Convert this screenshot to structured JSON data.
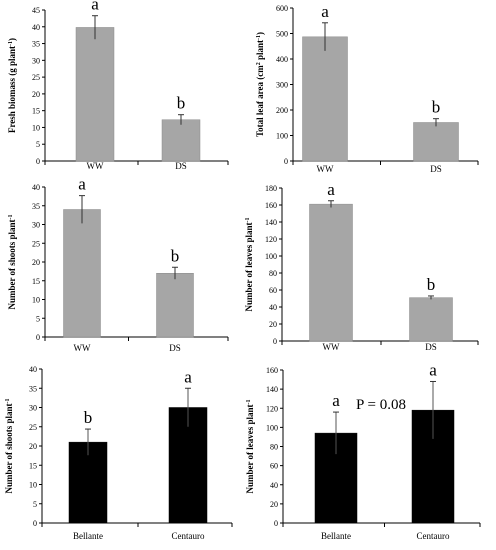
{
  "chart_data": [
    {
      "type": "bar",
      "categories": [
        "WW",
        "DS"
      ],
      "values": [
        39.8,
        12.3
      ],
      "errors": [
        3.5,
        1.5
      ],
      "significance": [
        "a",
        "b"
      ],
      "ylabel": "Fresh biomass (g plant-1)",
      "ylim": [
        0,
        45
      ],
      "yticks": [
        "0",
        "5",
        "10",
        "15",
        "20",
        "25",
        "30",
        "35",
        "40",
        "45"
      ],
      "bar_color": "#a6a6a6",
      "note": ""
    },
    {
      "type": "bar",
      "categories": [
        "WW",
        "DS"
      ],
      "values": [
        487,
        151
      ],
      "errors": [
        55,
        15
      ],
      "significance": [
        "a",
        "b"
      ],
      "ylabel": "Total leaf area (cm2 plant-1)",
      "ylim": [
        0,
        600
      ],
      "yticks": [
        "0",
        "100",
        "200",
        "300",
        "400",
        "500",
        "600"
      ],
      "bar_color": "#a6a6a6",
      "note": ""
    },
    {
      "type": "bar",
      "categories": [
        "WW",
        "DS"
      ],
      "values": [
        34,
        17
      ],
      "errors": [
        3.7,
        1.6
      ],
      "significance": [
        "a",
        "b"
      ],
      "ylabel": "Number of shoots  plant-1",
      "ylim": [
        0,
        40
      ],
      "yticks": [
        "0",
        "5",
        "10",
        "15",
        "20",
        "25",
        "30",
        "35",
        "40"
      ],
      "bar_color": "#a6a6a6",
      "note": ""
    },
    {
      "type": "bar",
      "categories": [
        "WW",
        "DS"
      ],
      "values": [
        161,
        51
      ],
      "errors": [
        4,
        2
      ],
      "significance": [
        "a",
        "b"
      ],
      "ylabel": "Number of leaves  plant-1",
      "ylim": [
        0,
        180
      ],
      "yticks": [
        "0",
        "20",
        "40",
        "60",
        "80",
        "100",
        "120",
        "140",
        "160",
        "180"
      ],
      "bar_color": "#a6a6a6",
      "note": ""
    },
    {
      "type": "bar",
      "categories": [
        "Bellante",
        "Centauro"
      ],
      "values": [
        21,
        30
      ],
      "errors": [
        3.4,
        5
      ],
      "significance": [
        "b",
        "a"
      ],
      "ylabel": "Number of shoots  plant-1",
      "ylim": [
        0,
        40
      ],
      "yticks": [
        "0",
        "5",
        "10",
        "15",
        "20",
        "25",
        "30",
        "35",
        "40"
      ],
      "bar_color": "#000000",
      "note": ""
    },
    {
      "type": "bar",
      "categories": [
        "Bellante",
        "Centauro"
      ],
      "values": [
        94,
        118
      ],
      "errors": [
        22,
        30
      ],
      "significance": [
        "a",
        "a"
      ],
      "ylabel": "Number of leaves  plant-1",
      "ylim": [
        0,
        160
      ],
      "yticks": [
        "0",
        "20",
        "40",
        "60",
        "80",
        "100",
        "120",
        "140",
        "160"
      ],
      "bar_color": "#000000",
      "note": "P = 0.08"
    }
  ]
}
